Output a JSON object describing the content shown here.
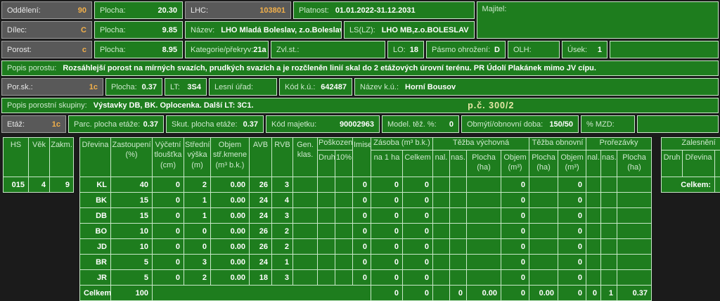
{
  "colors": {
    "field_green": "#1e7d1e",
    "label_gray": "#595959",
    "page_bg": "#1b1b1b",
    "accent_orange": "#f2b04a",
    "pale_green_text": "#cde9cd",
    "border_light": "#c8e8c8",
    "annotation_yellow": "#e8e8a8"
  },
  "fields": {
    "oddeleni": {
      "label": "Oddělení:",
      "value": "90"
    },
    "plocha1": {
      "label": "Plocha:",
      "value": "20.30"
    },
    "lhc": {
      "label": "LHC:",
      "value": "103801"
    },
    "platnost": {
      "label": "Platnost:",
      "value": "01.01.2022-31.12.2031"
    },
    "majitel": {
      "label": "Majitel:",
      "value": ""
    },
    "dilec": {
      "label": "Dílec:",
      "value": "C"
    },
    "plocha2": {
      "label": "Plocha:",
      "value": "9.85"
    },
    "nazev": {
      "label": "Název:",
      "value": "LHO Mladá Boleslav, z.o.Boleslav"
    },
    "ls_lz": {
      "label": "LS(LZ):",
      "value": "LHO MB,z.o.BOLESLAV"
    },
    "porost": {
      "label": "Porost:",
      "value": "c"
    },
    "plocha3": {
      "label": "Plocha:",
      "value": "8.95"
    },
    "kategorie": {
      "label": "Kategorie/překryv:",
      "value": "21a"
    },
    "zvl_st": {
      "label": "Zvl.st.:",
      "value": ""
    },
    "lo": {
      "label": "LO:",
      "value": "18"
    },
    "pasmo": {
      "label": "Pásmo ohrožení:",
      "value": "D"
    },
    "olh": {
      "label": "OLH:",
      "value": ""
    },
    "usek": {
      "label": "Úsek:",
      "value": "1"
    },
    "popis_porostu": {
      "label": "Popis porostu:",
      "value": "Rozsáhlejší porost na mírných svazích, prudkých svazích a je rozčleněn linií skal do 2 etážových úrovní terénu. PR Údolí Plakánek mimo JV cípu."
    },
    "por_sk": {
      "label": "Por.sk.:",
      "value": "1c"
    },
    "plocha4": {
      "label": "Plocha:",
      "value": "0.37"
    },
    "lt": {
      "label": "LT:",
      "value": "3S4"
    },
    "lesni_urad": {
      "label": "Lesní úřad:",
      "value": ""
    },
    "kod_ku": {
      "label": "Kód k.ú.:",
      "value": "642487"
    },
    "nazev_ku": {
      "label": "Název k.ú.:",
      "value": "Horní Bousov"
    },
    "popis_skupiny": {
      "label": "Popis porostní skupiny:",
      "value": "Výstavky DB, BK. Oplocenka. Další LT: 3C1.",
      "annotation": "p.č. 300/2"
    },
    "etaz": {
      "label": "Etáž:",
      "value": "1c"
    },
    "parc_plocha": {
      "label": "Parc. plocha etáže:",
      "value": "0.37"
    },
    "skut_plocha": {
      "label": "Skut. plocha etáže:",
      "value": "0.37"
    },
    "kod_majetku": {
      "label": "Kód majetku:",
      "value": "90002963"
    },
    "model_tez": {
      "label": "Model. těž. %:",
      "value": "0"
    },
    "obmyti": {
      "label": "Obmýtí/obnovní doba:",
      "value": "150/50"
    },
    "mzd": {
      "label": "% MZD:",
      "value": ""
    }
  },
  "hs_table": {
    "headers": [
      "HS",
      "Věk",
      "Zakm."
    ],
    "row": [
      "015",
      "4",
      "9"
    ]
  },
  "species_table": {
    "groups": {
      "poskozeni": "Poškození",
      "zasoba": "Zásoba (m³ b.k.)",
      "tezba_vychovna": "Těžba výchovná",
      "tezba_obnovni": "Těžba obnovní",
      "prorezavky": "Prořezávky"
    },
    "headers": {
      "drevina": "Dřevina",
      "zastoupeni": "Zastoupení\n(%)",
      "vycetni": "Výčetní\ntloušťka\n(cm)",
      "stredni": "Střední\nvýška\n(m)",
      "objem_kmene": "Objem\nstř.kmene\n(m³ b.k.)",
      "avb": "AVB",
      "rvb": "RVB",
      "gen_klas": "Gen.\nklas.",
      "druh": "Druh",
      "deset_pct": "10%",
      "imise": "Imise",
      "na_1_ha": "na 1 ha",
      "celkem": "Celkem",
      "nal": "nal.",
      "nas": "nas.",
      "plocha_ha": "Plocha\n(ha)",
      "objem_m3": "Objem\n(m³)"
    },
    "rows": [
      [
        "KL",
        "40",
        "0",
        "2",
        "0.00",
        "26",
        "3",
        "",
        "",
        "",
        "0",
        "0",
        "0",
        "",
        "",
        "",
        "0",
        "",
        "0",
        "",
        "",
        ""
      ],
      [
        "BK",
        "15",
        "0",
        "1",
        "0.00",
        "24",
        "4",
        "",
        "",
        "",
        "0",
        "0",
        "0",
        "",
        "",
        "",
        "0",
        "",
        "0",
        "",
        "",
        ""
      ],
      [
        "DB",
        "15",
        "0",
        "1",
        "0.00",
        "24",
        "3",
        "",
        "",
        "",
        "0",
        "0",
        "0",
        "",
        "",
        "",
        "0",
        "",
        "0",
        "",
        "",
        ""
      ],
      [
        "BO",
        "10",
        "0",
        "0",
        "0.00",
        "26",
        "2",
        "",
        "",
        "",
        "0",
        "0",
        "0",
        "",
        "",
        "",
        "0",
        "",
        "0",
        "",
        "",
        ""
      ],
      [
        "JD",
        "10",
        "0",
        "0",
        "0.00",
        "26",
        "2",
        "",
        "",
        "",
        "0",
        "0",
        "0",
        "",
        "",
        "",
        "0",
        "",
        "0",
        "",
        "",
        ""
      ],
      [
        "BR",
        "5",
        "0",
        "3",
        "0.00",
        "24",
        "1",
        "",
        "",
        "",
        "0",
        "0",
        "0",
        "",
        "",
        "",
        "0",
        "",
        "0",
        "",
        "",
        ""
      ],
      [
        "JR",
        "5",
        "0",
        "2",
        "0.00",
        "18",
        "3",
        "",
        "",
        "",
        "0",
        "0",
        "0",
        "",
        "",
        "",
        "0",
        "",
        "0",
        "",
        "",
        ""
      ]
    ],
    "total_row": {
      "label": "Celkem:",
      "zastoupeni": "100",
      "cells": [
        "0",
        "0",
        "",
        "0",
        "0.00",
        "0",
        "0.00",
        "0",
        "0",
        "1",
        "0.37"
      ]
    }
  },
  "zalesneni_table": {
    "title": "Zalesnění",
    "headers": [
      "Druh",
      "Dřevina",
      "ha"
    ],
    "total_label": "Celkem:",
    "ha": ""
  }
}
